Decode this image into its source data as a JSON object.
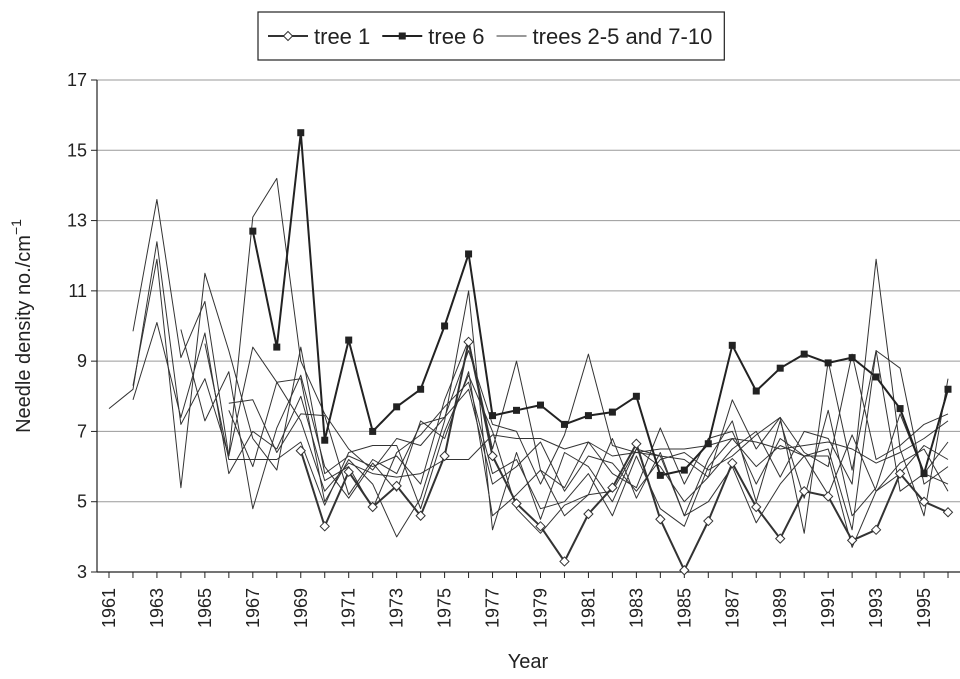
{
  "chart_data": {
    "type": "line",
    "xlabel": "Year",
    "ylabel": "Needle density no./cm",
    "ylabel_superscript": "−1",
    "categories": [
      "1961",
      null,
      "1963",
      null,
      "1965",
      null,
      "1967",
      null,
      "1969",
      null,
      "1971",
      null,
      "1973",
      null,
      "1975",
      null,
      "1977",
      null,
      "1979",
      null,
      "1981",
      null,
      "1983",
      null,
      "1985",
      null,
      "1987",
      null,
      "1989",
      null,
      "1991",
      null,
      "1993",
      null,
      "1995",
      null
    ],
    "ylim": [
      3,
      17
    ],
    "yticks": [
      3,
      5,
      7,
      9,
      11,
      13,
      15,
      17
    ],
    "grid": true,
    "legend": "top",
    "series": [
      {
        "name": "tree 1",
        "color": "#333333",
        "marker": "diamond",
        "values": [
          null,
          null,
          null,
          null,
          null,
          null,
          null,
          null,
          6.45,
          4.3,
          5.85,
          4.85,
          5.45,
          4.6,
          6.3,
          9.55,
          6.3,
          4.95,
          4.3,
          3.3,
          4.65,
          5.4,
          6.65,
          4.5,
          3.05,
          4.45,
          6.1,
          4.85,
          3.95,
          5.3,
          5.15,
          3.9,
          4.2,
          5.8,
          5.0,
          4.7
        ]
      },
      {
        "name": "tree 6",
        "color": "#222222",
        "marker": "square",
        "values": [
          null,
          null,
          null,
          null,
          null,
          null,
          12.7,
          9.4,
          15.5,
          6.75,
          9.6,
          7.0,
          7.7,
          8.2,
          10.0,
          12.05,
          7.45,
          7.6,
          7.75,
          7.2,
          7.45,
          7.55,
          8.0,
          5.75,
          5.9,
          6.65,
          9.45,
          8.15,
          8.8,
          9.2,
          8.95,
          9.1,
          8.55,
          7.65,
          5.8,
          8.2
        ]
      },
      {
        "name": "trees 2-5 and 7-10",
        "color": "#333333",
        "lines": [
          [
            7.65,
            8.2,
            12.4,
            7.2,
            8.5,
            6.3,
            13.1,
            14.2,
            9.0,
            7.5,
            6.5,
            5.9,
            6.8,
            6.6,
            7.4,
            9.3,
            7.2,
            7.0,
            5.5,
            6.9,
            9.2,
            6.6,
            6.4,
            6.3,
            6.2,
            5.7,
            7.9,
            6.5,
            7.4,
            6.4,
            6.0,
            9.2,
            6.2,
            6.6,
            7.2,
            7.5
          ],
          [
            null,
            9.85,
            13.6,
            9.1,
            10.7,
            6.3,
            9.4,
            8.4,
            8.5,
            5.0,
            6.2,
            5.5,
            4.0,
            5.1,
            7.3,
            11.0,
            4.2,
            6.4,
            4.5,
            6.4,
            6.0,
            5.0,
            6.5,
            6.0,
            5.0,
            5.7,
            6.5,
            7.0,
            5.7,
            7.0,
            6.8,
            5.5,
            11.9,
            6.5,
            4.6,
            8.5
          ],
          [
            null,
            7.9,
            10.1,
            7.4,
            9.8,
            5.8,
            7.0,
            6.5,
            8.0,
            5.6,
            6.0,
            4.8,
            6.4,
            6.9,
            7.7,
            8.4,
            5.8,
            6.2,
            4.8,
            5.0,
            5.8,
            4.6,
            6.3,
            4.8,
            4.3,
            6.0,
            6.8,
            6.0,
            6.6,
            6.3,
            6.5,
            4.2,
            9.3,
            8.8,
            5.5,
            6.0
          ],
          [
            null,
            8.3,
            11.9,
            5.4,
            11.5,
            9.3,
            6.8,
            5.9,
            9.4,
            5.8,
            6.3,
            6.0,
            6.3,
            5.5,
            7.9,
            9.6,
            6.5,
            9.0,
            5.9,
            5.4,
            6.7,
            5.8,
            5.4,
            7.1,
            5.5,
            6.8,
            7.0,
            5.5,
            6.8,
            6.3,
            5.2,
            6.9,
            5.3,
            6.1,
            6.5,
            5.3
          ],
          [
            null,
            null,
            null,
            9.9,
            7.3,
            8.7,
            4.8,
            7.1,
            8.6,
            6.0,
            5.1,
            6.1,
            5.3,
            7.3,
            6.8,
            8.7,
            4.6,
            5.2,
            5.9,
            4.6,
            5.2,
            6.8,
            5.1,
            6.4,
            4.6,
            6.2,
            7.3,
            5.0,
            7.3,
            5.1,
            7.6,
            4.6,
            5.4,
            7.5,
            5.8,
            6.7
          ],
          [
            null,
            null,
            null,
            null,
            null,
            7.8,
            7.9,
            6.4,
            7.5,
            7.45,
            5.2,
            6.2,
            5.8,
            7.2,
            7.4,
            8.2,
            5.5,
            6.0,
            6.7,
            5.3,
            6.3,
            6.1,
            5.3,
            6.2,
            6.4,
            5.9,
            6.3,
            6.9,
            7.4,
            4.1,
            9.0,
            5.9,
            9.3,
            5.3,
            5.8,
            5.5
          ],
          [
            null,
            null,
            null,
            null,
            null,
            7.6,
            6.0,
            8.4,
            7.3,
            5.3,
            6.1,
            5.8,
            5.7,
            5.8,
            6.2,
            6.2,
            6.9,
            6.8,
            6.8,
            6.5,
            6.7,
            6.3,
            6.4,
            6.5,
            6.5,
            6.6,
            6.8,
            6.7,
            6.5,
            6.6,
            6.7,
            6.5,
            6.1,
            6.4,
            6.8,
            7.3
          ],
          [
            null,
            null,
            null,
            null,
            9.5,
            6.2,
            6.2,
            6.2,
            6.7,
            4.9,
            6.4,
            6.6,
            6.6,
            4.8,
            7.0,
            8.6,
            7.0,
            4.8,
            4.1,
            4.9,
            5.2,
            5.3,
            6.5,
            6.3,
            4.6,
            5.0,
            6.0,
            4.4,
            5.5,
            6.3,
            6.3,
            3.7,
            5.3,
            5.8,
            6.6,
            6.2
          ]
        ]
      }
    ]
  }
}
